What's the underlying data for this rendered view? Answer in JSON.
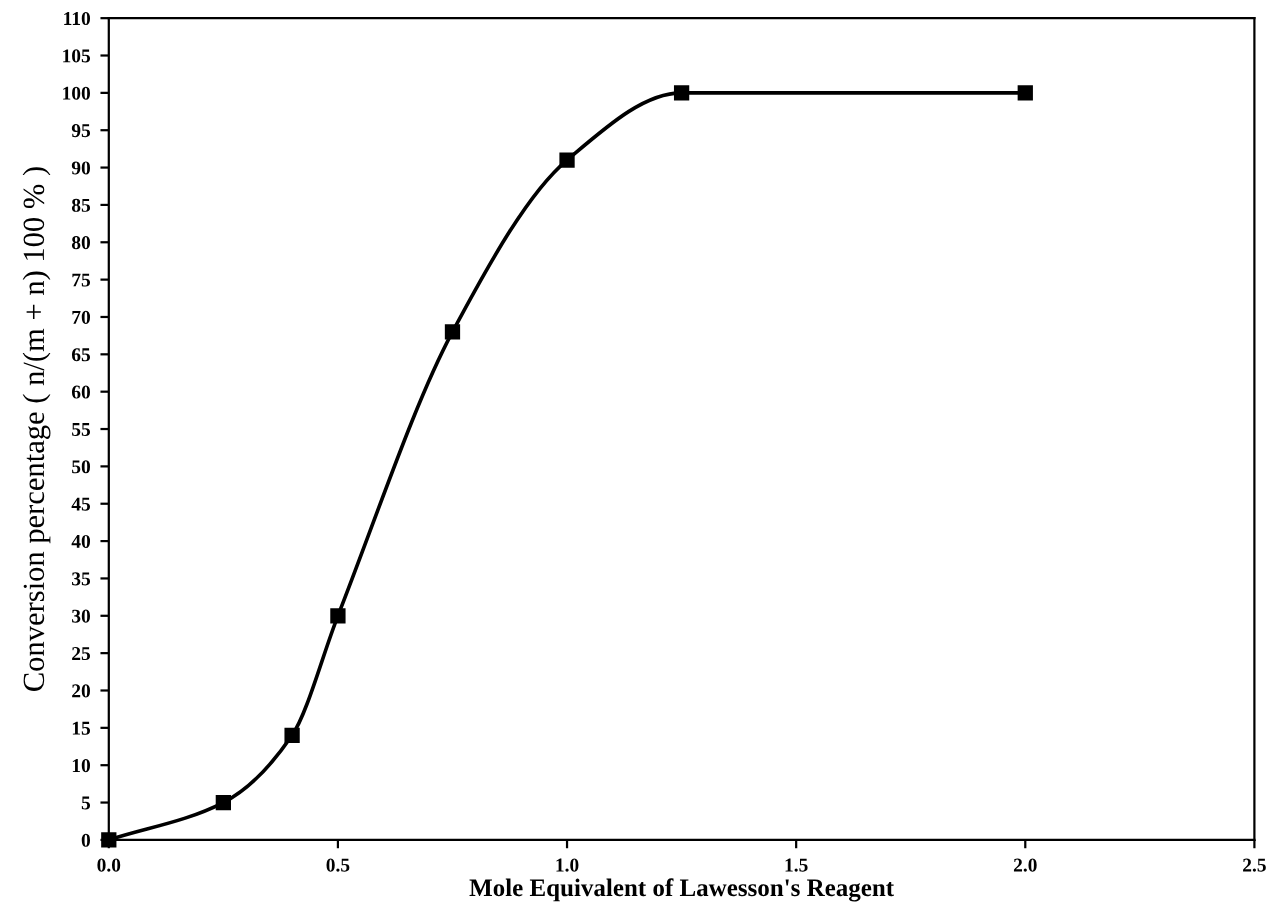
{
  "chart_data": {
    "type": "line",
    "xlabel": "Mole Equivalent of Lawesson's Reagent",
    "ylabel": "Conversion percentage ( n/(m + n) 100 % )",
    "series": [
      {
        "color": "#000000",
        "x": [
          0.0,
          0.25,
          0.4,
          0.5,
          0.75,
          1.0,
          1.25,
          2.0
        ],
        "values": [
          0,
          5,
          14,
          30,
          68,
          91,
          100,
          100
        ]
      }
    ],
    "marker": "square",
    "line_style": "solid",
    "xlim": [
      0,
      2.5
    ],
    "ylim": [
      0,
      110
    ],
    "xticks": [
      {
        "value": 0,
        "label": "0.0"
      },
      0.5,
      {
        "value": 1,
        "label": "1.0"
      },
      1.5,
      {
        "value": 2,
        "label": "2.0"
      },
      2.5
    ],
    "yticks": [
      0,
      5,
      10,
      15,
      20,
      25,
      30,
      35,
      40,
      45,
      50,
      55,
      60,
      65,
      70,
      75,
      80,
      85,
      90,
      95,
      100,
      105,
      110
    ],
    "grid": false,
    "legend": false
  }
}
